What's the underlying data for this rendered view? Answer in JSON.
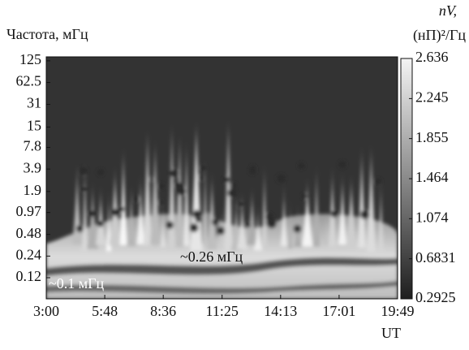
{
  "chart_data": {
    "type": "spectrogram",
    "ylabel": "Частота, мГц",
    "xlabel": "UT",
    "yscale": "log",
    "ylim": [
      0.061,
      142
    ],
    "yticks": [
      0.12,
      0.24,
      0.48,
      0.97,
      1.9,
      3.9,
      7.8,
      15,
      31,
      62.5,
      125
    ],
    "xlim": [
      3,
      19.8167
    ],
    "xticks": [
      {
        "value": 3,
        "label": "3:00"
      },
      {
        "value": 5.8,
        "label": "5:48"
      },
      {
        "value": 8.6,
        "label": "8:36"
      },
      {
        "value": 11.4167,
        "label": "11:25"
      },
      {
        "value": 14.2167,
        "label": "14:13"
      },
      {
        "value": 17.0167,
        "label": "17:01"
      },
      {
        "value": 19.8167,
        "label": "19:49"
      }
    ],
    "colorbar": {
      "label_top": "nV,",
      "label": "(нП)²/Гц",
      "lim": [
        0.2925,
        2.636
      ],
      "ticks": [
        0.2925,
        0.6831,
        1.074,
        1.464,
        1.855,
        2.245,
        2.636
      ]
    },
    "annotations": [
      {
        "text": "~0.26 мГц"
      },
      {
        "text": "~0.1 мГц"
      }
    ]
  }
}
